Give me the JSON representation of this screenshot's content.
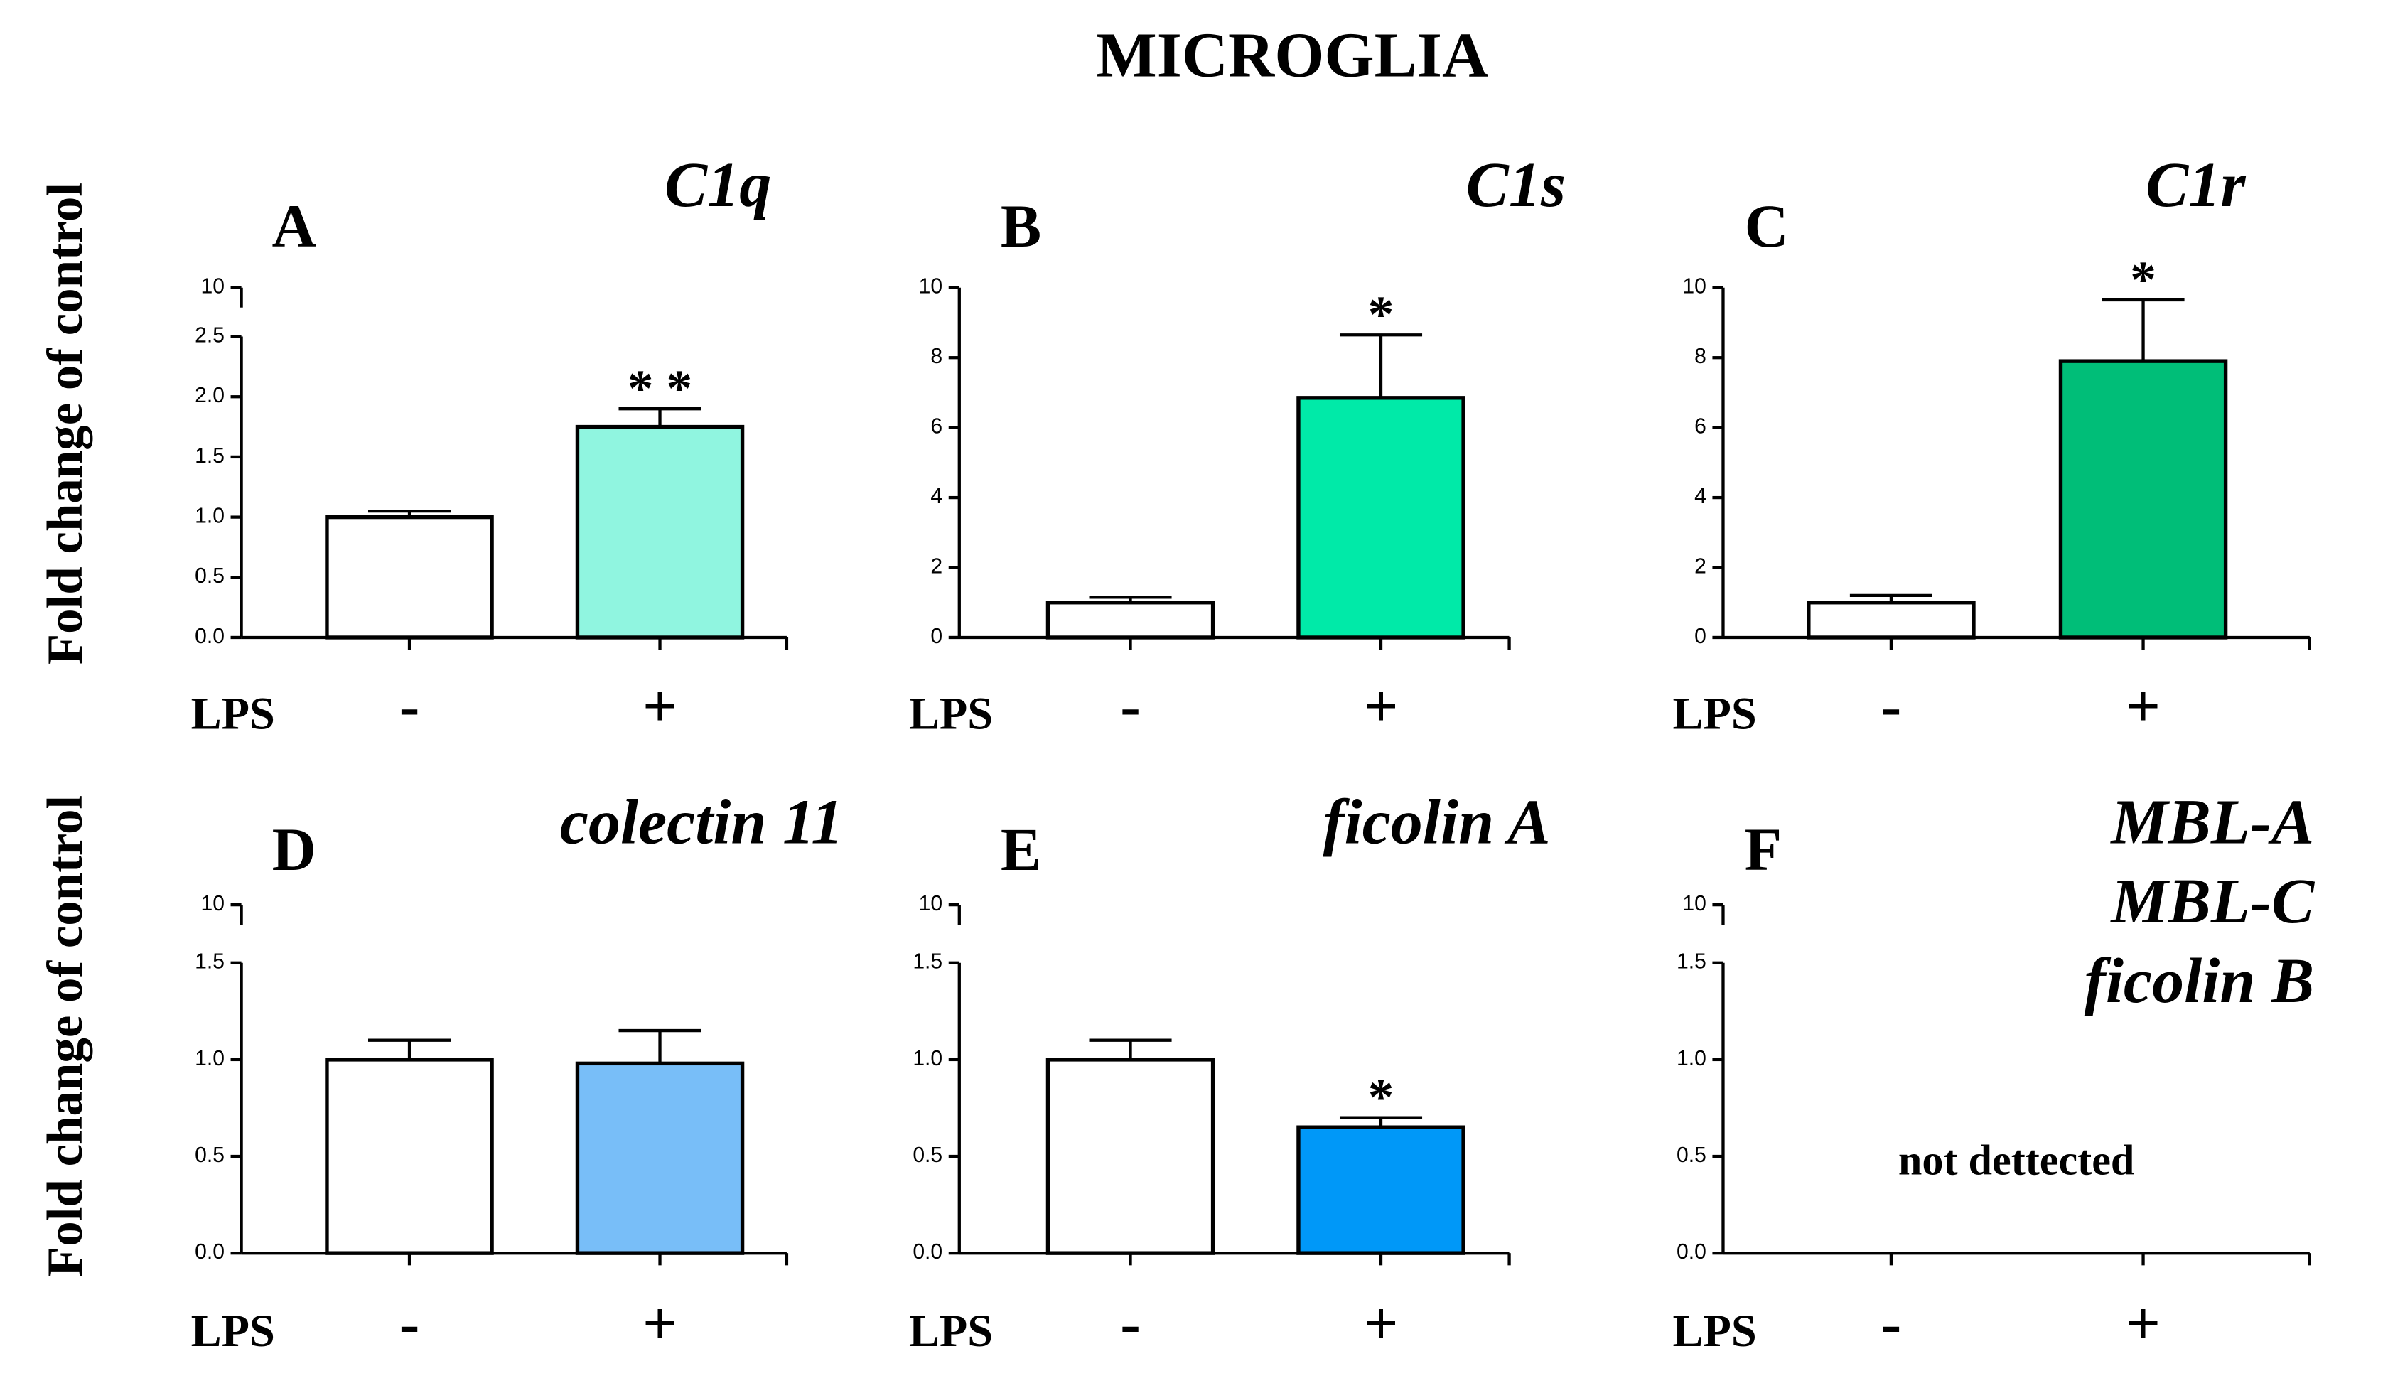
{
  "title": "MICROGLIA",
  "ylabel": "Fold change of control",
  "xlabel": "LPS",
  "chart_data": [
    {
      "type": "bar",
      "label": "A",
      "title": [
        "C1q"
      ],
      "categories": [
        "-",
        "+"
      ],
      "values": [
        1.0,
        1.75
      ],
      "errors": [
        0.05,
        0.15
      ],
      "colors": [
        "#ffffff",
        "#90f5e0"
      ],
      "significance": [
        null,
        "* *"
      ],
      "ylim": [
        0,
        2.5
      ],
      "yticks": [
        {
          "value": 0,
          "label": "0.0"
        },
        {
          "value": 0.5,
          "label": "0.5"
        },
        {
          "value": 1,
          "label": "1.0"
        },
        {
          "value": 1.5,
          "label": "1.5"
        },
        {
          "value": 2,
          "label": "2.0"
        },
        {
          "value": 2.5,
          "label": "2.5"
        }
      ],
      "ybreak_ticks": [
        10
      ]
    },
    {
      "type": "bar",
      "label": "B",
      "title": [
        "C1s"
      ],
      "categories": [
        "-",
        "+"
      ],
      "values": [
        1.0,
        6.85
      ],
      "errors": [
        0.15,
        1.8
      ],
      "colors": [
        "#ffffff",
        "#00eaa8"
      ],
      "significance": [
        null,
        "*"
      ],
      "ylim": [
        0,
        10
      ],
      "yticks": [
        0,
        2,
        4,
        6,
        8,
        10
      ]
    },
    {
      "type": "bar",
      "label": "C",
      "title": [
        "C1r"
      ],
      "categories": [
        "-",
        "+"
      ],
      "values": [
        1.0,
        7.9
      ],
      "errors": [
        0.2,
        1.75
      ],
      "colors": [
        "#ffffff",
        "#00be78"
      ],
      "significance": [
        null,
        "*"
      ],
      "ylim": [
        0,
        10
      ],
      "yticks": [
        0,
        2,
        4,
        6,
        8,
        10
      ]
    },
    {
      "type": "bar",
      "label": "D",
      "title": [
        "colectin 11"
      ],
      "categories": [
        "-",
        "+"
      ],
      "values": [
        1.0,
        0.98
      ],
      "errors": [
        0.1,
        0.17
      ],
      "colors": [
        "#ffffff",
        "#78bef8"
      ],
      "ylim": [
        0,
        1.5
      ],
      "yticks": [
        {
          "value": 0,
          "label": "0.0"
        },
        {
          "value": 0.5,
          "label": "0.5"
        },
        {
          "value": 1,
          "label": "1.0"
        },
        {
          "value": 1.5,
          "label": "1.5"
        }
      ],
      "ybreak_ticks": [
        10
      ]
    },
    {
      "type": "bar",
      "label": "E",
      "title": [
        "ficolin A"
      ],
      "categories": [
        "-",
        "+"
      ],
      "values": [
        1.0,
        0.65
      ],
      "errors": [
        0.1,
        0.05
      ],
      "colors": [
        "#ffffff",
        "#0098f8"
      ],
      "significance": [
        null,
        "*"
      ],
      "ylim": [
        0,
        1.5
      ],
      "yticks": [
        {
          "value": 0,
          "label": "0.0"
        },
        {
          "value": 0.5,
          "label": "0.5"
        },
        {
          "value": 1,
          "label": "1.0"
        },
        {
          "value": 1.5,
          "label": "1.5"
        }
      ],
      "ybreak_ticks": [
        10
      ]
    },
    {
      "type": "bar",
      "label": "F",
      "title": [
        "MBL-A",
        "MBL-C",
        "ficolin B"
      ],
      "categories": [
        "-",
        "+"
      ],
      "annotation": "not dettected",
      "ylim": [
        0,
        1.5
      ],
      "yticks": [
        {
          "value": 0,
          "label": "0.0"
        },
        {
          "value": 0.5,
          "label": "0.5"
        },
        {
          "value": 1,
          "label": "1.0"
        },
        {
          "value": 1.5,
          "label": "1.5"
        }
      ],
      "ybreak_ticks": [
        10
      ]
    }
  ]
}
